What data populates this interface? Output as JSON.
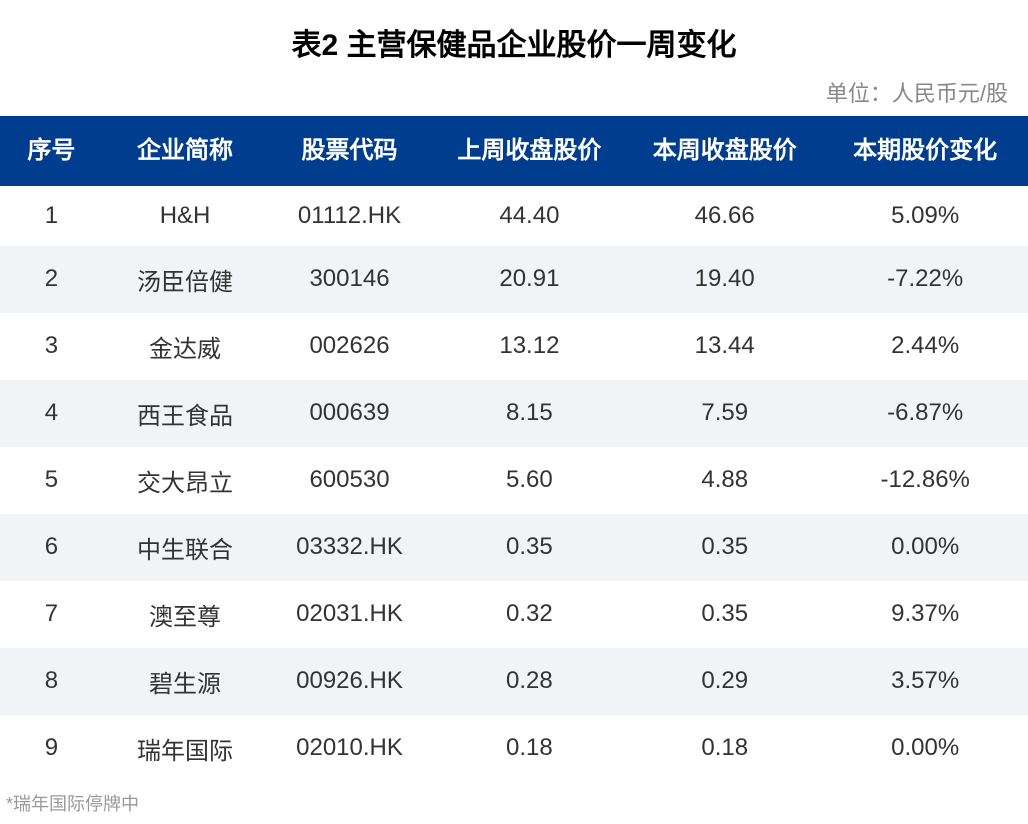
{
  "title": "表2 主营保健品企业股价一周变化",
  "unit_label": "单位：人民币元/股",
  "columns": [
    "序号",
    "企业简称",
    "股票代码",
    "上周收盘股价",
    "本周收盘股价",
    "本期股价变化"
  ],
  "rows": [
    {
      "idx": "1",
      "name": "H&H",
      "code": "01112.HK",
      "last": "44.40",
      "this": "46.66",
      "change": "5.09%"
    },
    {
      "idx": "2",
      "name": "汤臣倍健",
      "code": "300146",
      "last": "20.91",
      "this": "19.40",
      "change": "-7.22%"
    },
    {
      "idx": "3",
      "name": "金达威",
      "code": "002626",
      "last": "13.12",
      "this": "13.44",
      "change": "2.44%"
    },
    {
      "idx": "4",
      "name": "西王食品",
      "code": "000639",
      "last": "8.15",
      "this": "7.59",
      "change": "-6.87%"
    },
    {
      "idx": "5",
      "name": "交大昂立",
      "code": "600530",
      "last": "5.60",
      "this": "4.88",
      "change": "-12.86%"
    },
    {
      "idx": "6",
      "name": "中生联合",
      "code": "03332.HK",
      "last": "0.35",
      "this": "0.35",
      "change": "0.00%"
    },
    {
      "idx": "7",
      "name": "澳至尊",
      "code": "02031.HK",
      "last": "0.32",
      "this": "0.35",
      "change": "9.37%"
    },
    {
      "idx": "8",
      "name": "碧生源",
      "code": "00926.HK",
      "last": "0.28",
      "this": "0.29",
      "change": "3.57%"
    },
    {
      "idx": "9",
      "name": "瑞年国际",
      "code": "02010.HK",
      "last": "0.18",
      "this": "0.18",
      "change": "0.00%"
    }
  ],
  "footnote": "*瑞年国际停牌中",
  "style": {
    "header_bg": "#003d8f",
    "header_text_color": "#ffffff",
    "row_odd_bg": "#ffffff",
    "row_even_bg": "#f1f3f6",
    "title_fontsize": 30,
    "header_fontsize": 24,
    "cell_fontsize": 24,
    "unit_color": "#888888",
    "footnote_color": "#999999"
  }
}
